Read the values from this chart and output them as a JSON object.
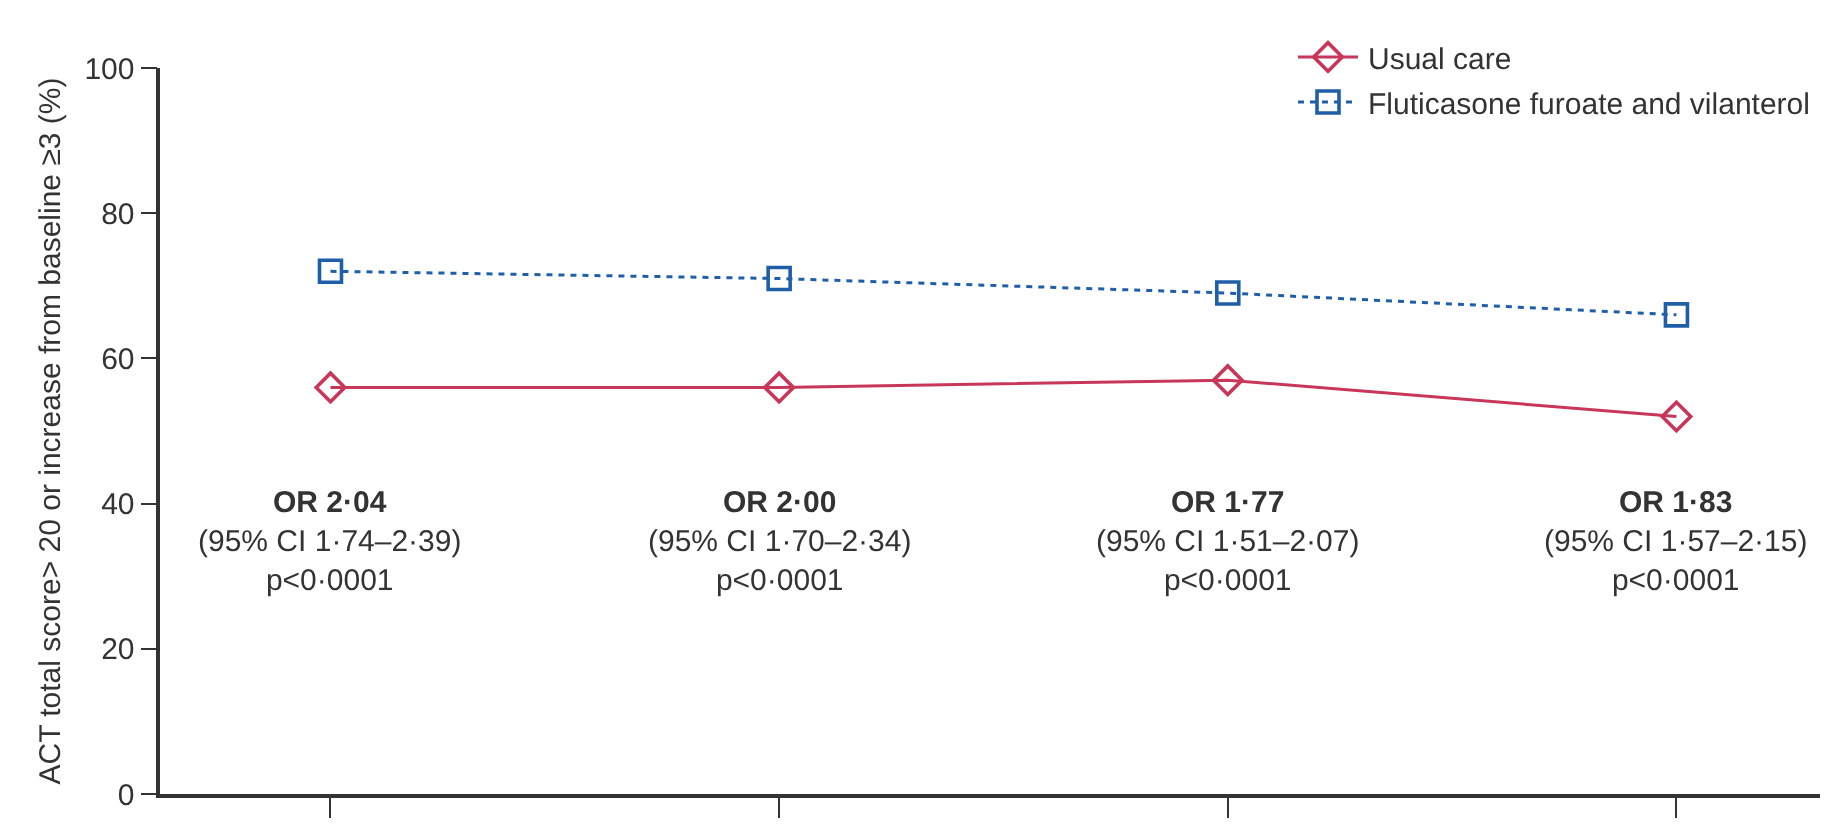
{
  "chart_data": {
    "type": "line",
    "ylabel": "ACT total score> 20 or increase from baseline ≥3 (%)",
    "categories": [
      null,
      null,
      null,
      null
    ],
    "series": [
      {
        "name": "Usual care",
        "color": "#c8375a",
        "values": [
          56,
          56,
          57,
          52
        ],
        "marker": "diamond",
        "line_style": "solid"
      },
      {
        "name": "Fluticasone furoate and vilanterol",
        "color": "#1f5fa8",
        "values": [
          72,
          71,
          69,
          66
        ],
        "marker": "square",
        "line_style": "dotted"
      }
    ],
    "annotations": [
      "OR 2·04\n(95% CI 1·74–2·39)\np<0·0001",
      "OR 2·00\n(95% CI 1·70–2·34)\np<0·0001",
      "OR 1·77\n(95% CI 1·51–2·07)\np<0·0001",
      "OR 1·83\n(95% CI 1·57–2·15)\np<0·0001"
    ],
    "ylim": [
      0,
      100
    ],
    "yticks": [
      0,
      20,
      40,
      60,
      80,
      100
    ],
    "grid": false,
    "legend": "top right",
    "tick_labels": "y"
  }
}
